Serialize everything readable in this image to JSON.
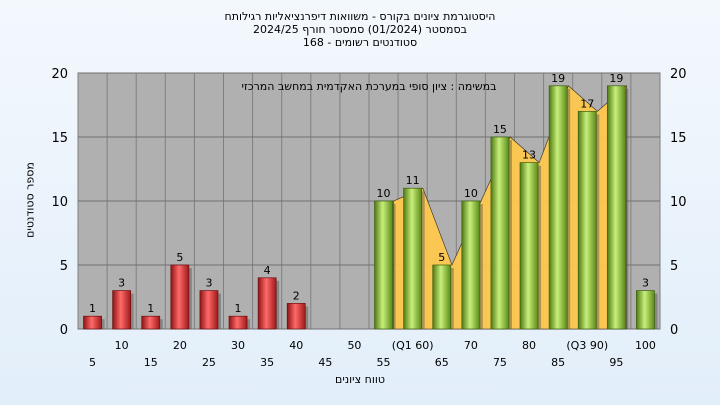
{
  "title_lines": [
    "היסטוגרמת ציונים בקורס - משוואות דיפרנציאליות רגילותח",
    "בסמסטר  (01/2024)  סמסטר חורף  2024/25",
    "סטודנטים רשומים - 168"
  ],
  "chart_data": {
    "type": "bar",
    "annotation": "במשימה : ציון סופי במערכת האקדמית במחשב המרכזי",
    "xlabel": "טווח ציונים",
    "ylabel": "מספר סטודנטים",
    "ylim": [
      0,
      20
    ],
    "y_ticks": [
      0,
      5,
      10,
      15,
      20
    ],
    "x_tick_labels_upper": [
      "10",
      "20",
      "30",
      "40",
      "50",
      "(Q1 60)",
      "70",
      "80",
      "(Q3 90)",
      "100"
    ],
    "x_tick_labels_lower": [
      "5",
      "15",
      "25",
      "35",
      "45",
      "55",
      "65",
      "75",
      "85",
      "95"
    ],
    "categories": [
      "5",
      "10",
      "15",
      "20",
      "25",
      "30",
      "35",
      "40",
      "45",
      "50",
      "55",
      "60",
      "65",
      "70",
      "75",
      "80",
      "85",
      "90",
      "95",
      "100"
    ],
    "values": [
      1,
      3,
      1,
      5,
      3,
      1,
      4,
      2,
      0,
      0,
      10,
      11,
      5,
      10,
      15,
      13,
      19,
      17,
      19,
      3
    ],
    "bar_color_fail": "#e03a3a",
    "bar_color_pass": "#8cc63f",
    "area_color": "#ffc94d",
    "plot_background": "#b0b0b0",
    "grid": true
  }
}
